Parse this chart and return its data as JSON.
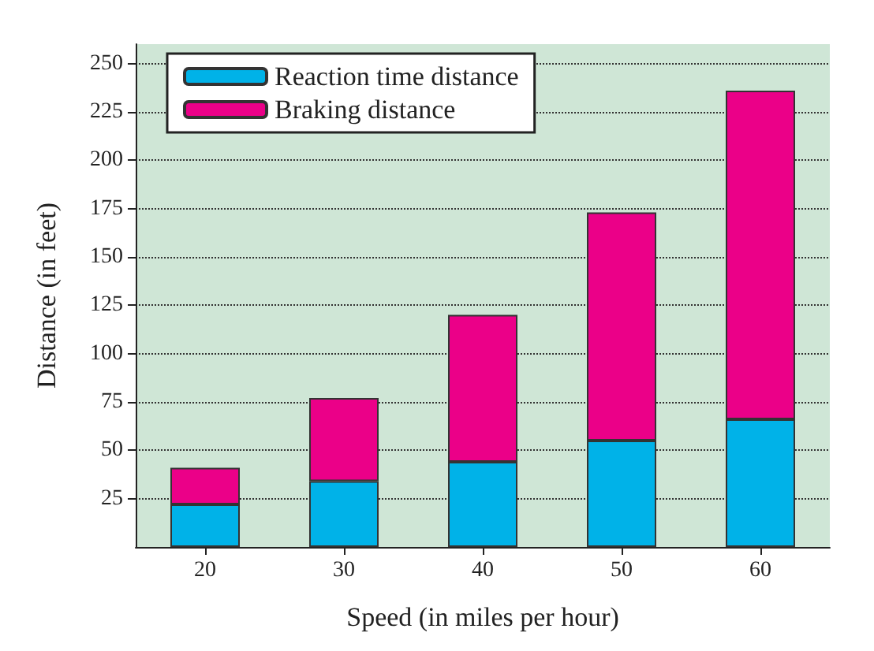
{
  "chart_data": {
    "type": "bar",
    "stacked": true,
    "categories": [
      "20",
      "30",
      "40",
      "50",
      "60"
    ],
    "series": [
      {
        "name": "Reaction time distance",
        "color": "#00b2e8",
        "values": [
          22,
          34,
          44,
          55,
          66
        ]
      },
      {
        "name": "Braking distance",
        "color": "#eb0088",
        "values": [
          19,
          43,
          76,
          118,
          170
        ]
      }
    ],
    "xlabel": "Speed (in miles per hour)",
    "ylabel": "Distance (in feet)",
    "ylim": [
      0,
      260
    ],
    "yticks": [
      25,
      50,
      75,
      100,
      125,
      150,
      175,
      200,
      225,
      250
    ],
    "grid": "y",
    "legend": "top left"
  }
}
